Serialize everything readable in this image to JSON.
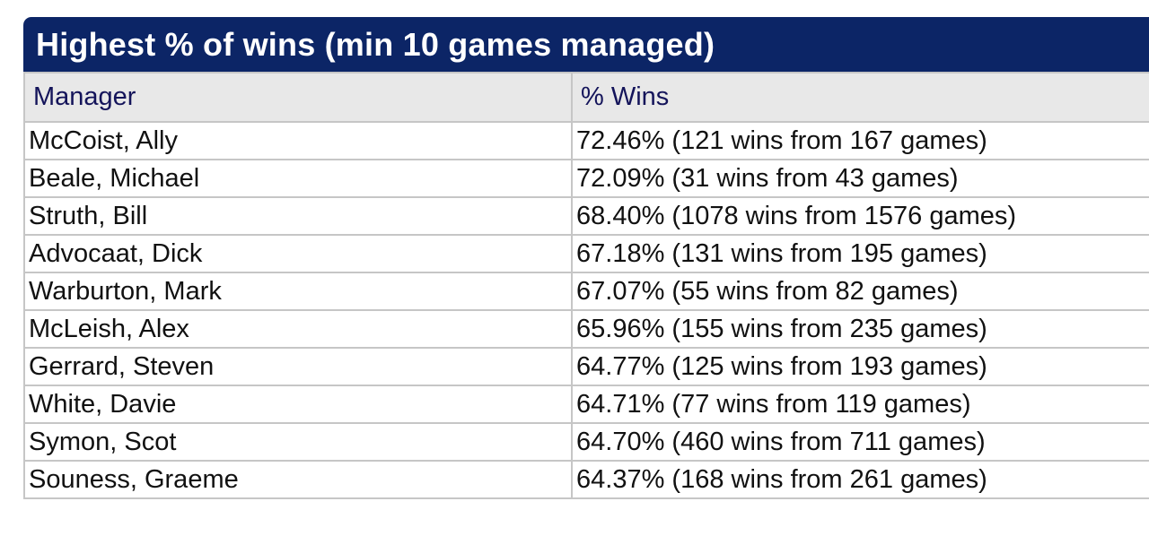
{
  "table": {
    "title": "Highest % of wins (min 10 games managed)",
    "headers": {
      "manager": "Manager",
      "wins": "% Wins"
    },
    "rows": [
      {
        "manager": "McCoist, Ally",
        "wins": "72.46% (121 wins from 167 games)"
      },
      {
        "manager": "Beale, Michael",
        "wins": "72.09% (31 wins from 43 games)"
      },
      {
        "manager": "Struth, Bill",
        "wins": "68.40% (1078 wins from 1576 games)"
      },
      {
        "manager": "Advocaat, Dick",
        "wins": "67.18% (131 wins from 195 games)"
      },
      {
        "manager": "Warburton, Mark",
        "wins": "67.07% (55 wins from 82 games)"
      },
      {
        "manager": "McLeish, Alex",
        "wins": "65.96% (155 wins from 235 games)"
      },
      {
        "manager": "Gerrard, Steven",
        "wins": "64.77% (125 wins from 193 games)"
      },
      {
        "manager": "White, Davie",
        "wins": "64.71% (77 wins from 119 games)"
      },
      {
        "manager": "Symon, Scot",
        "wins": "64.70% (460 wins from 711 games)"
      },
      {
        "manager": "Souness, Graeme",
        "wins": "64.37% (168 wins from 261 games)"
      }
    ]
  },
  "colors": {
    "title_background": "#0c2566",
    "title_text": "#ffffff",
    "header_background": "#e8e8e8",
    "header_text": "#14145a",
    "border": "#c6c6c6"
  }
}
